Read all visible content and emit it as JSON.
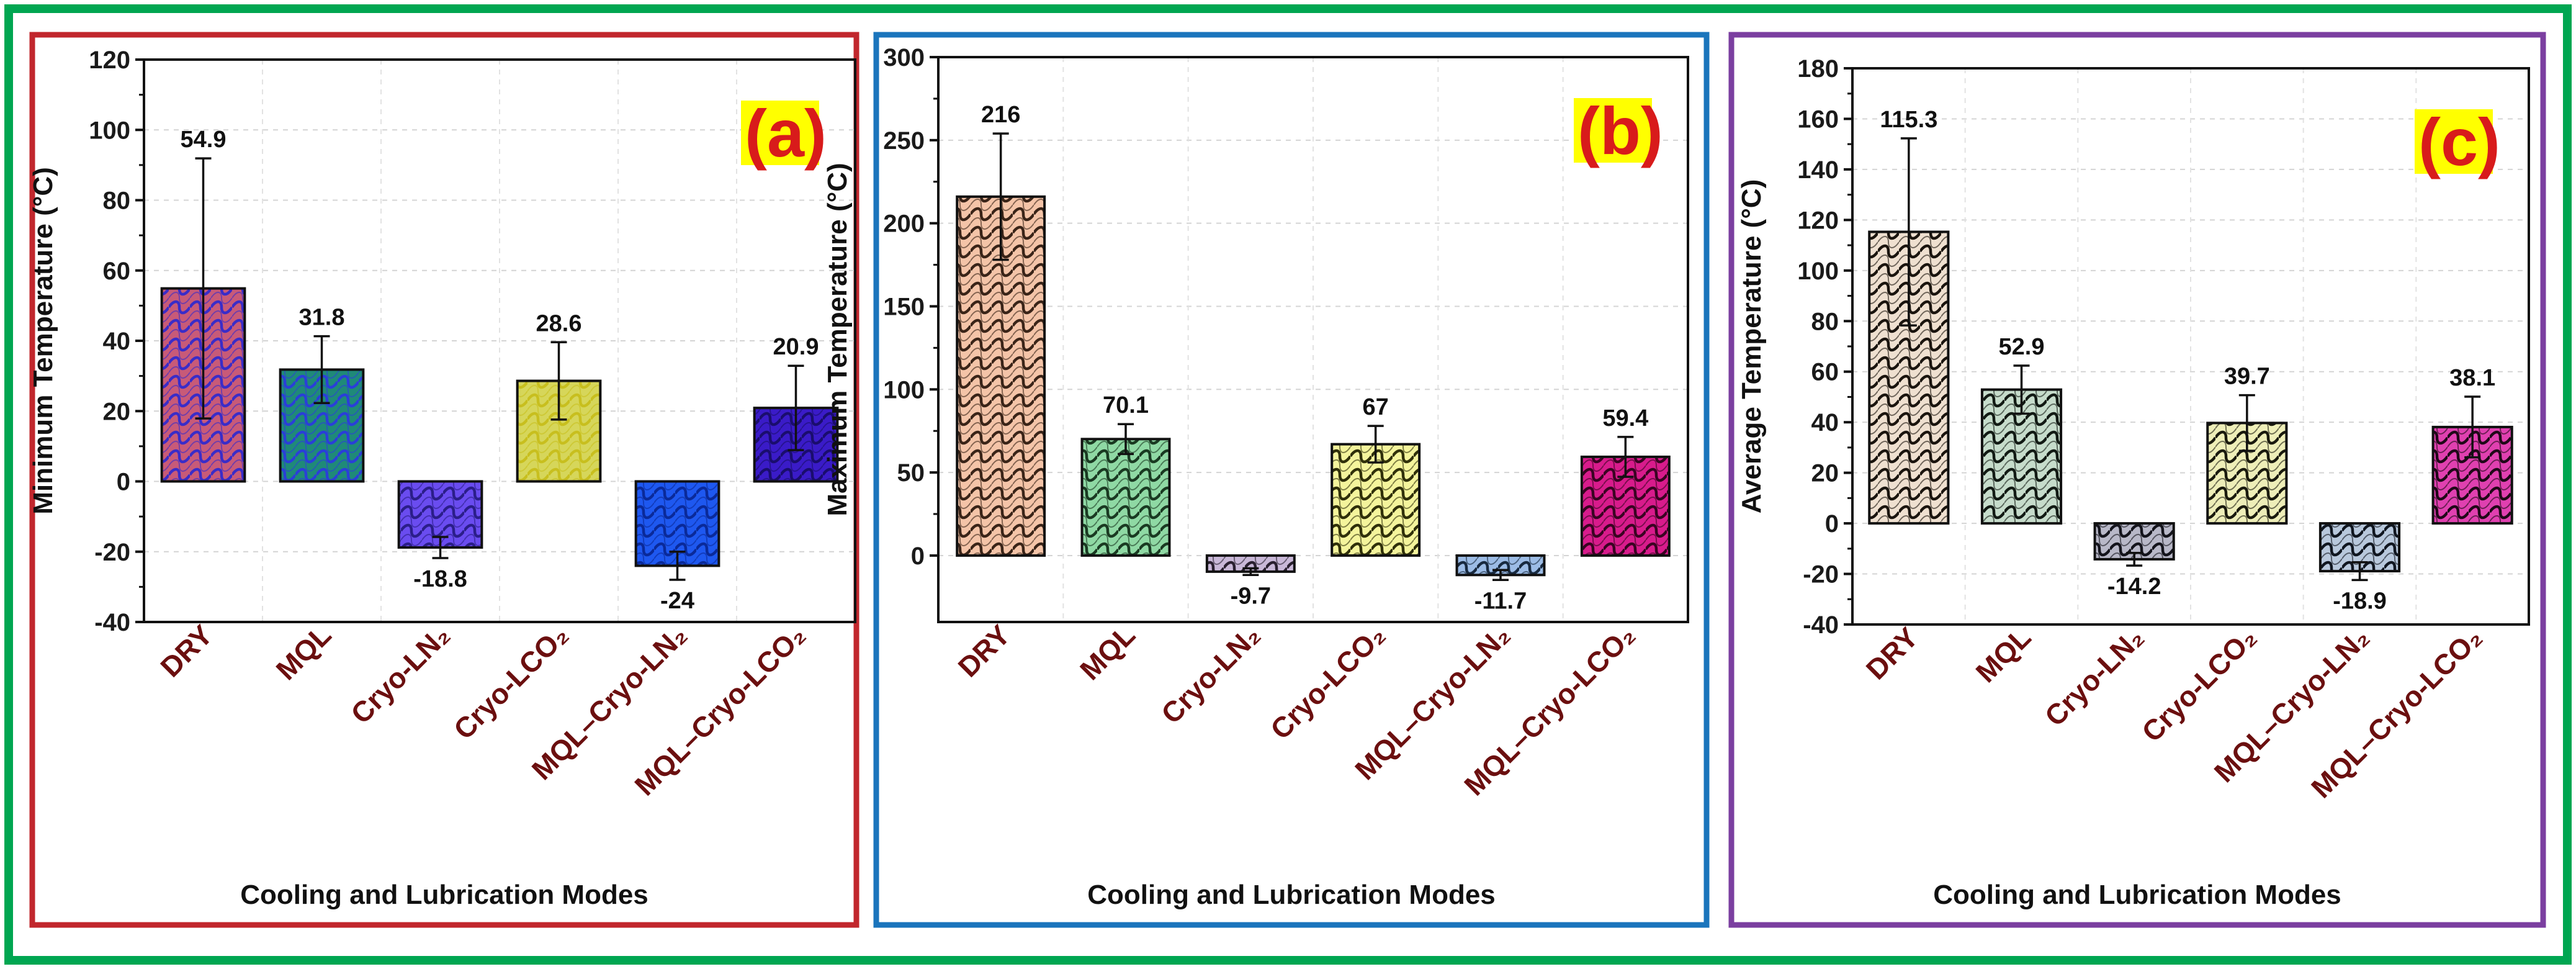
{
  "figure": {
    "outer_border_color": "#00a651",
    "xlabel": "Cooling and Lubrication Modes",
    "tag_color": "#d81b1b",
    "tag_highlight": "#ffff00",
    "category_label_color": "#6b0f0f"
  },
  "chart_data": [
    {
      "type": "bar",
      "panel": "(a)",
      "border_color": "#c1272d",
      "ylabel": "Minimum Temperature (°C)",
      "xlabel": "Cooling and Lubrication Modes",
      "categories": [
        "DRY",
        "MQL",
        "Cryo-LN₂",
        "Cryo-LCO₂",
        "MQL–Cryo-LN₂",
        "MQL–Cryo-LCO₂"
      ],
      "values": [
        54.9,
        31.8,
        -18.8,
        28.6,
        -24,
        20.9
      ],
      "value_labels": [
        "54.9",
        "31.8",
        "-18.8",
        "28.6",
        "-24",
        "20.9"
      ],
      "errors": [
        37,
        9.5,
        3,
        11,
        4,
        12
      ],
      "ylim": [
        -40,
        120
      ],
      "yticks": [
        -40,
        -20,
        0,
        20,
        40,
        60,
        80,
        100,
        120
      ],
      "ytick_labels": [
        "-40",
        "-20",
        "0",
        "20",
        "40",
        "60",
        "80",
        "100",
        "120"
      ],
      "bar_colors": [
        "#c85a78",
        "#1f8a78",
        "#6a4cf0",
        "#d6d65a",
        "#1e58f0",
        "#3a1bc8"
      ],
      "pattern_colors": [
        "#3a2cc8",
        "#2a3fd8",
        "#2b1e8a",
        "#c8bf1e",
        "#0a2a9a",
        "#1a0d6e"
      ]
    },
    {
      "type": "bar",
      "panel": "(b)",
      "border_color": "#1b75bc",
      "ylabel": "Maximum Temperature (°C)",
      "xlabel": "Cooling and Lubrication Modes",
      "categories": [
        "DRY",
        "MQL",
        "Cryo-LN₂",
        "Cryo-LCO₂",
        "MQL–Cryo-LN₂",
        "MQL–Cryo-LCO₂"
      ],
      "values": [
        216,
        70.1,
        -9.7,
        67,
        -11.7,
        59.4
      ],
      "value_labels": [
        "216",
        "70.1",
        "-9.7",
        "67",
        "-11.7",
        "59.4"
      ],
      "errors": [
        38,
        9,
        2,
        11,
        3,
        12
      ],
      "ylim": [
        -40,
        300
      ],
      "yticks": [
        0,
        50,
        100,
        150,
        200,
        250,
        300
      ],
      "ytick_labels": [
        "0",
        "50",
        "100",
        "150",
        "200",
        "250",
        "300"
      ],
      "bar_colors": [
        "#f4c4a8",
        "#8fd9a4",
        "#c9b8d8",
        "#f4f49c",
        "#9cbce6",
        "#d81b8c"
      ],
      "pattern_colors": [
        "#3a2418",
        "#1a3a22",
        "#2a2030",
        "#30300a",
        "#182a40",
        "#3a0422"
      ]
    },
    {
      "type": "bar",
      "panel": "(c)",
      "border_color": "#7b3fa0",
      "ylabel": "Average Temperature (°C)",
      "xlabel": "Cooling and Lubrication Modes",
      "categories": [
        "DRY",
        "MQL",
        "Cryo-LN₂",
        "Cryo-LCO₂",
        "MQL–Cryo-LN₂",
        "MQL–Cryo-LCO₂"
      ],
      "values": [
        115.3,
        52.9,
        -14.2,
        39.7,
        -18.9,
        38.1
      ],
      "value_labels": [
        "115.3",
        "52.9",
        "-14.2",
        "39.7",
        "-18.9",
        "38.1"
      ],
      "errors": [
        37,
        9.5,
        2.5,
        11,
        3.5,
        12
      ],
      "ylim": [
        -40,
        180
      ],
      "yticks": [
        -40,
        -20,
        0,
        20,
        40,
        60,
        80,
        100,
        120,
        140,
        160,
        180
      ],
      "ytick_labels": [
        "-40",
        "-20",
        "0",
        "20",
        "40",
        "60",
        "80",
        "100",
        "120",
        "140",
        "160",
        "180"
      ],
      "bar_colors": [
        "#efe0d0",
        "#c6dccb",
        "#b8b8c8",
        "#eeeeb8",
        "#b8c8dc",
        "#e040b0"
      ],
      "pattern_colors": [
        "#1a140e",
        "#121a14",
        "#14141c",
        "#1a1a0e",
        "#101620",
        "#200818"
      ]
    }
  ]
}
